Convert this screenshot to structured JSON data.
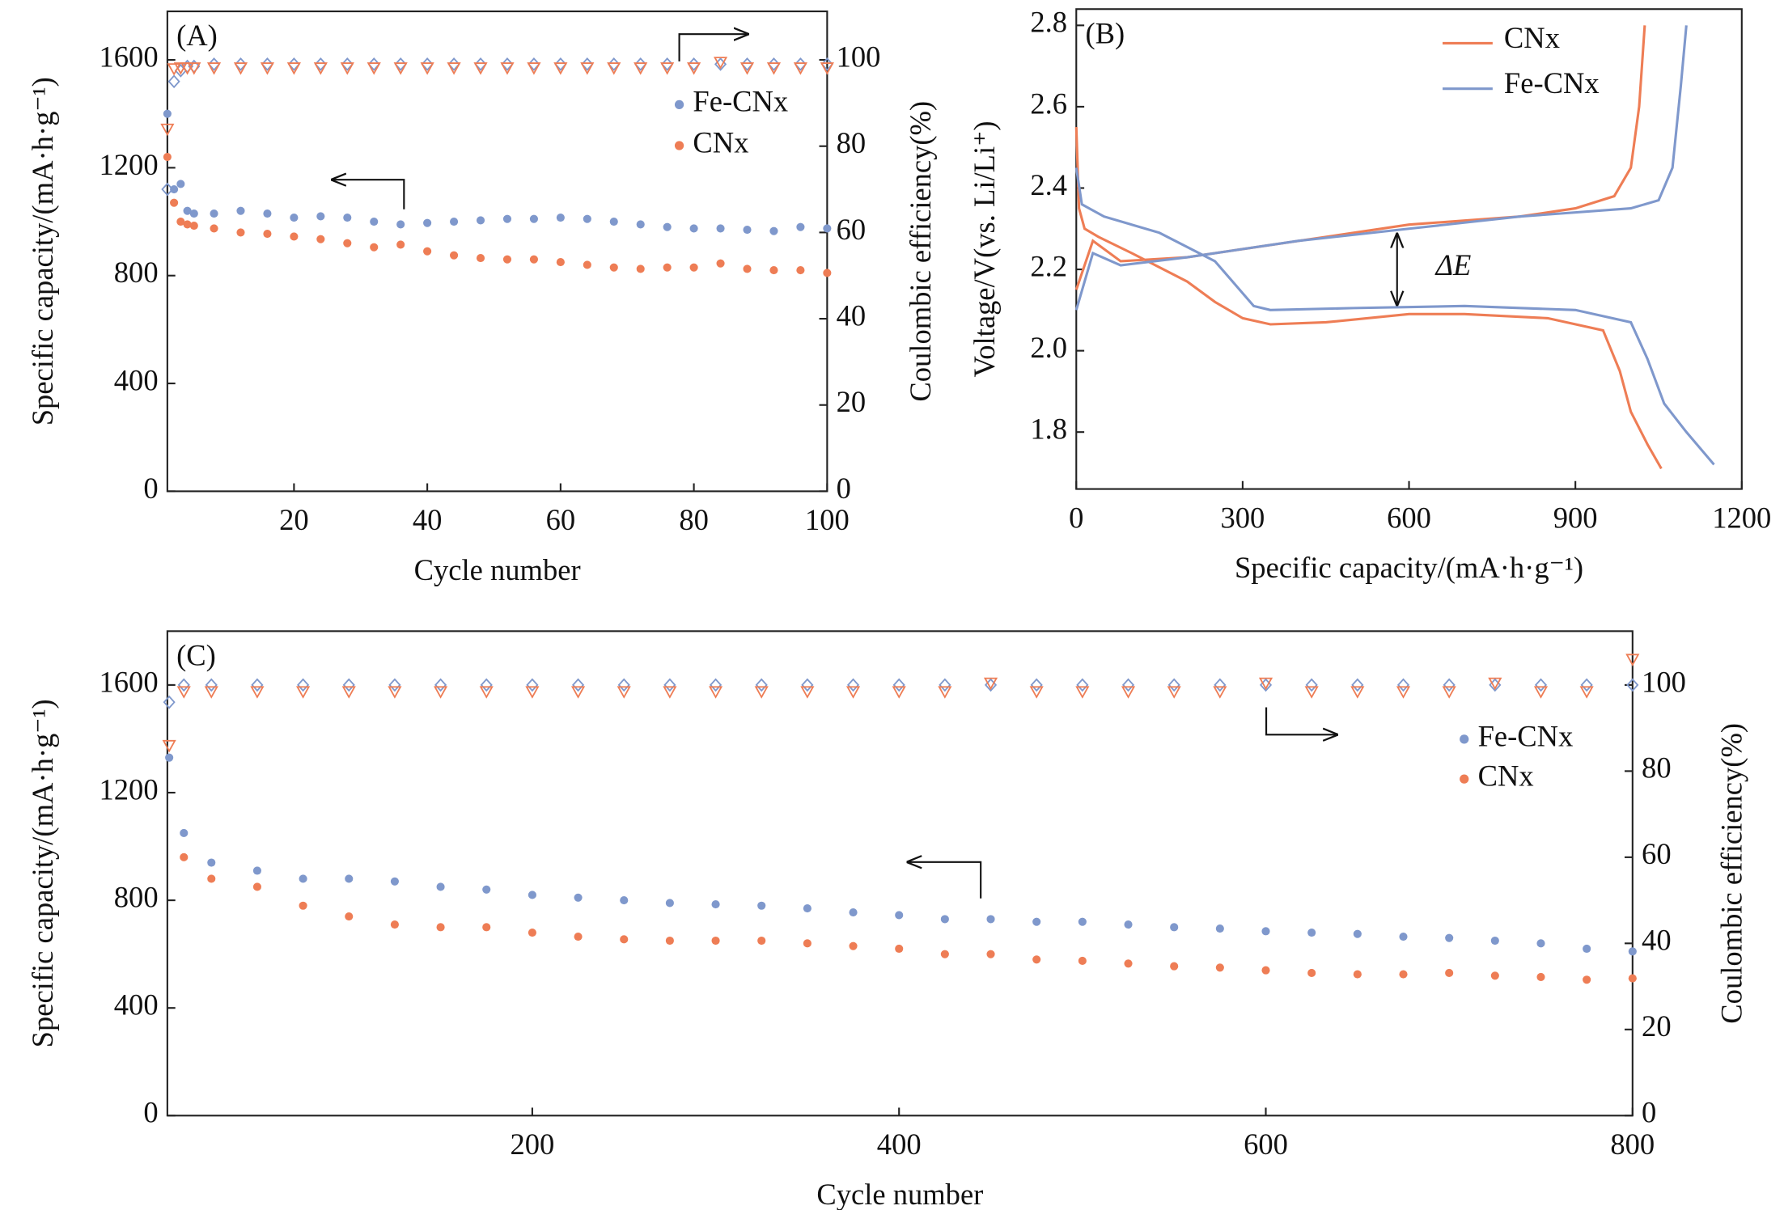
{
  "chart_data": [
    {
      "type": "scatter",
      "title": "(A)",
      "xlabel": "Cycle number",
      "ylabel": "Specific capacity/(mA·h·g⁻¹)",
      "y2label": "Coulombic efficiency(%)",
      "x": [
        1,
        2,
        3,
        4,
        5,
        8,
        12,
        16,
        20,
        24,
        28,
        32,
        36,
        40,
        44,
        48,
        52,
        56,
        60,
        64,
        68,
        72,
        76,
        80,
        84,
        88,
        92,
        96,
        100
      ],
      "series": [
        {
          "name": "Fe-CNx",
          "color": "#7f98cc",
          "values": [
            1400,
            1120,
            1140,
            1040,
            1030,
            1030,
            1040,
            1030,
            1015,
            1020,
            1015,
            1000,
            990,
            995,
            1000,
            1005,
            1010,
            1010,
            1015,
            1010,
            1000,
            990,
            980,
            975,
            975,
            970,
            965,
            980,
            975
          ],
          "efficiency": [
            70,
            95,
            97.5,
            98.5,
            98.5,
            99,
            99,
            99,
            99,
            99,
            99,
            99,
            99,
            99,
            99,
            99,
            99,
            99,
            99,
            99,
            99,
            99,
            99,
            99,
            99,
            99,
            99,
            99,
            99
          ]
        },
        {
          "name": "CNx",
          "color": "#ee7d55",
          "values": [
            1240,
            1070,
            1000,
            990,
            985,
            975,
            960,
            955,
            945,
            935,
            920,
            905,
            915,
            890,
            875,
            865,
            860,
            860,
            850,
            840,
            830,
            825,
            830,
            830,
            845,
            825,
            820,
            820,
            810
          ],
          "efficiency": [
            84,
            98,
            98.2,
            98.2,
            98.2,
            98.2,
            98.2,
            98.2,
            98.2,
            98.2,
            98.2,
            98.2,
            98.2,
            98.2,
            98.2,
            98.2,
            98.2,
            98.2,
            98.2,
            98.2,
            98.2,
            98.2,
            98.2,
            98.2,
            99.5,
            98.2,
            98.2,
            98.2,
            98.2
          ]
        }
      ],
      "xlim": [
        1,
        100
      ],
      "xticks": [
        20,
        40,
        60,
        80,
        100
      ],
      "ylim": [
        0,
        1780
      ],
      "yticks": [
        0,
        400,
        800,
        1200,
        1600
      ],
      "y2lim": [
        0,
        111.25
      ],
      "y2ticks": [
        0,
        20,
        40,
        60,
        80,
        100
      ],
      "legend": "upper right"
    },
    {
      "type": "line",
      "title": "(B)",
      "xlabel": "Specific capacity/(mA·h·g⁻¹)",
      "ylabel": "Voltage/V(vs. Li/Li⁺)",
      "annotation": "ΔE",
      "series": [
        {
          "name": "CNx",
          "color": "#ee7d55",
          "x": [
            0,
            5,
            15,
            40,
            100,
            200,
            250,
            300,
            350,
            450,
            600,
            700,
            850,
            950,
            980,
            1000,
            1030,
            1055,
            null,
            0,
            30,
            80,
            200,
            300,
            450,
            600,
            800,
            900,
            970,
            1000,
            1015,
            1025
          ],
          "values": [
            2.55,
            2.35,
            2.3,
            2.28,
            2.24,
            2.17,
            2.12,
            2.08,
            2.065,
            2.07,
            2.09,
            2.09,
            2.08,
            2.05,
            1.95,
            1.85,
            1.77,
            1.71,
            null,
            2.15,
            2.27,
            2.22,
            2.23,
            2.25,
            2.28,
            2.31,
            2.33,
            2.35,
            2.38,
            2.45,
            2.6,
            2.8
          ]
        },
        {
          "name": "Fe-CNx",
          "color": "#7f98cc",
          "x": [
            0,
            10,
            50,
            150,
            250,
            320,
            350,
            500,
            700,
            900,
            1000,
            1030,
            1060,
            1100,
            1150,
            null,
            0,
            30,
            80,
            200,
            400,
            600,
            800,
            1000,
            1050,
            1075,
            1090,
            1100
          ],
          "values": [
            2.45,
            2.36,
            2.33,
            2.29,
            2.22,
            2.11,
            2.1,
            2.105,
            2.11,
            2.1,
            2.07,
            1.98,
            1.87,
            1.8,
            1.72,
            null,
            2.1,
            2.24,
            2.21,
            2.23,
            2.27,
            2.3,
            2.33,
            2.35,
            2.37,
            2.45,
            2.65,
            2.8
          ]
        }
      ],
      "xlim": [
        0,
        1200
      ],
      "xticks": [
        0,
        300,
        600,
        900,
        1200
      ],
      "ylim": [
        1.66,
        2.84
      ],
      "yticks": [
        1.8,
        {
          "value": 2,
          "label": "2.0"
        },
        2.2,
        2.4,
        2.6,
        2.8
      ],
      "legend": "upper right"
    },
    {
      "type": "scatter",
      "title": "(C)",
      "xlabel": "Cycle number",
      "ylabel": "Specific capacity/(mA·h·g⁻¹)",
      "y2label": "Coulombic efficiency(%)",
      "x": [
        2,
        10,
        25,
        50,
        75,
        100,
        125,
        150,
        175,
        200,
        225,
        250,
        275,
        300,
        325,
        350,
        375,
        400,
        425,
        450,
        475,
        500,
        525,
        550,
        575,
        600,
        625,
        650,
        675,
        700,
        725,
        750,
        775,
        800
      ],
      "series": [
        {
          "name": "Fe-CNx",
          "color": "#7f98cc",
          "values": [
            1330,
            1050,
            940,
            910,
            880,
            880,
            870,
            850,
            840,
            820,
            810,
            800,
            790,
            785,
            780,
            770,
            755,
            745,
            730,
            730,
            720,
            720,
            710,
            700,
            695,
            685,
            680,
            675,
            665,
            660,
            650,
            640,
            620,
            610
          ],
          "efficiency": [
            96,
            100,
            100,
            100,
            100,
            100,
            100,
            100,
            100,
            100,
            100,
            100,
            100,
            100,
            100,
            100,
            100,
            100,
            100,
            100,
            100,
            100,
            100,
            100,
            100,
            100,
            100,
            100,
            100,
            100,
            100,
            100,
            100,
            100
          ]
        },
        {
          "name": "CNx",
          "color": "#ee7d55",
          "values": [
            null,
            960,
            880,
            850,
            780,
            740,
            710,
            700,
            700,
            680,
            665,
            655,
            650,
            650,
            650,
            640,
            630,
            620,
            600,
            600,
            580,
            575,
            565,
            555,
            550,
            540,
            530,
            525,
            525,
            530,
            520,
            515,
            505,
            510
          ],
          "efficiency": [
            86,
            98.5,
            98.5,
            98.5,
            98.5,
            98.5,
            98.5,
            98.5,
            98.5,
            98.5,
            98.5,
            98.5,
            98.5,
            98.5,
            98.5,
            98.5,
            98.5,
            98.5,
            98.5,
            100.5,
            98.5,
            98.5,
            98.5,
            98.5,
            98.5,
            100.5,
            98.5,
            98.5,
            98.5,
            98.5,
            100.5,
            98.5,
            98.5,
            106
          ]
        }
      ],
      "xlim": [
        1,
        800
      ],
      "xticks": [
        200,
        400,
        600,
        800
      ],
      "ylim": [
        0,
        1800
      ],
      "yticks": [
        0,
        400,
        800,
        1200,
        1600
      ],
      "y2lim": [
        0,
        112.5
      ],
      "y2ticks": [
        0,
        20,
        40,
        60,
        80,
        100
      ],
      "legend": "upper right"
    }
  ]
}
